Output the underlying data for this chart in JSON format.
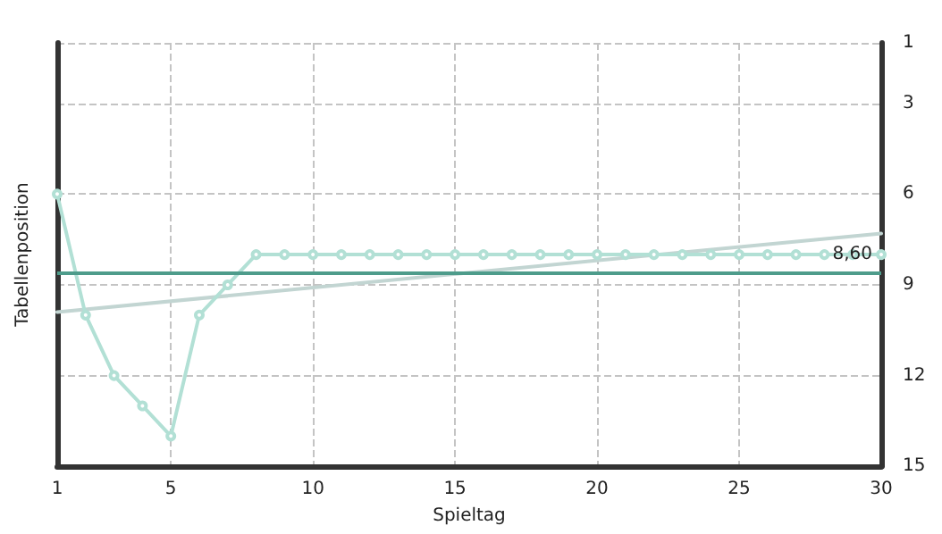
{
  "chart_data": {
    "type": "line",
    "xlabel": "Spieltag",
    "ylabel": "Tabellenposition",
    "xlim": [
      1,
      30
    ],
    "xticks": [
      1,
      5,
      10,
      15,
      20,
      25,
      30
    ],
    "ylim": [
      15,
      1
    ],
    "yticks": [
      1,
      3,
      6,
      9,
      12,
      15
    ],
    "grid": true,
    "marker": "circle",
    "line_style": "solid",
    "tick_labels": "xy",
    "series": [
      {
        "color": "#b2e0d5",
        "x": [
          1,
          2,
          3,
          4,
          5,
          6,
          7,
          8,
          9,
          10,
          11,
          12,
          13,
          14,
          15,
          16,
          17,
          18,
          19,
          20,
          21,
          22,
          23,
          24,
          25,
          26,
          27,
          28,
          29,
          30
        ],
        "values": [
          6,
          10,
          12,
          13,
          14,
          10,
          9,
          8,
          8,
          8,
          8,
          8,
          8,
          8,
          8,
          8,
          8,
          8,
          8,
          8,
          8,
          8,
          8,
          8,
          8,
          8,
          8,
          8,
          8,
          8
        ]
      },
      {
        "color": "#c2d5d2",
        "x": [
          1,
          30
        ],
        "values": [
          9.9,
          7.3
        ],
        "marker": "none"
      }
    ],
    "ref_lines": [
      {
        "axis": "y",
        "value": 8.6,
        "label": "8,60",
        "color": "#4e9c8b"
      }
    ]
  }
}
